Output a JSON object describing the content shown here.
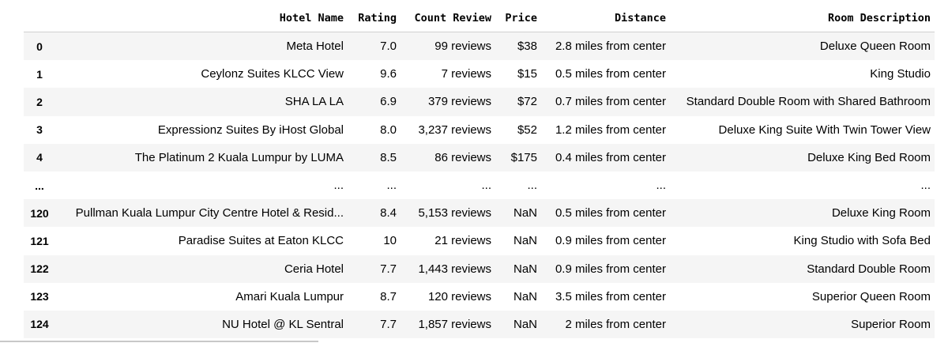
{
  "columns": [
    "",
    "Hotel Name",
    "Rating",
    "Count Review",
    "Price",
    "Distance",
    "Room Description"
  ],
  "rows": [
    {
      "index": "0",
      "hotel_name": "Meta Hotel",
      "rating": "7.0",
      "count_review": "99 reviews",
      "price": "$38",
      "distance": "2.8 miles from center",
      "room_description": "Deluxe Queen Room"
    },
    {
      "index": "1",
      "hotel_name": "Ceylonz Suites KLCC View",
      "rating": "9.6",
      "count_review": "7 reviews",
      "price": "$15",
      "distance": "0.5 miles from center",
      "room_description": "King Studio"
    },
    {
      "index": "2",
      "hotel_name": "SHA LA LA",
      "rating": "6.9",
      "count_review": "379 reviews",
      "price": "$72",
      "distance": "0.7 miles from center",
      "room_description": "Standard Double Room with Shared Bathroom"
    },
    {
      "index": "3",
      "hotel_name": "Expressionz Suites By iHost Global",
      "rating": "8.0",
      "count_review": "3,237 reviews",
      "price": "$52",
      "distance": "1.2 miles from center",
      "room_description": "Deluxe King Suite With Twin Tower View"
    },
    {
      "index": "4",
      "hotel_name": "The Platinum 2 Kuala Lumpur by LUMA",
      "rating": "8.5",
      "count_review": "86 reviews",
      "price": "$175",
      "distance": "0.4 miles from center",
      "room_description": "Deluxe King Bed Room"
    },
    {
      "index": "...",
      "hotel_name": "...",
      "rating": "...",
      "count_review": "...",
      "price": "...",
      "distance": "...",
      "room_description": "..."
    },
    {
      "index": "120",
      "hotel_name": "Pullman Kuala Lumpur City Centre Hotel & Resid...",
      "rating": "8.4",
      "count_review": "5,153 reviews",
      "price": "NaN",
      "distance": "0.5 miles from center",
      "room_description": "Deluxe King Room"
    },
    {
      "index": "121",
      "hotel_name": "Paradise Suites at Eaton KLCC",
      "rating": "10",
      "count_review": "21 reviews",
      "price": "NaN",
      "distance": "0.9 miles from center",
      "room_description": "King Studio with Sofa Bed"
    },
    {
      "index": "122",
      "hotel_name": "Ceria Hotel",
      "rating": "7.7",
      "count_review": "1,443 reviews",
      "price": "NaN",
      "distance": "0.9 miles from center",
      "room_description": "Standard Double Room"
    },
    {
      "index": "123",
      "hotel_name": "Amari Kuala Lumpur",
      "rating": "8.7",
      "count_review": "120 reviews",
      "price": "NaN",
      "distance": "3.5 miles from center",
      "room_description": "Superior Queen Room"
    },
    {
      "index": "124",
      "hotel_name": "NU Hotel @ KL Sentral",
      "rating": "7.7",
      "count_review": "1,857 reviews",
      "price": "NaN",
      "distance": "2 miles from center",
      "room_description": "Superior Room"
    }
  ]
}
